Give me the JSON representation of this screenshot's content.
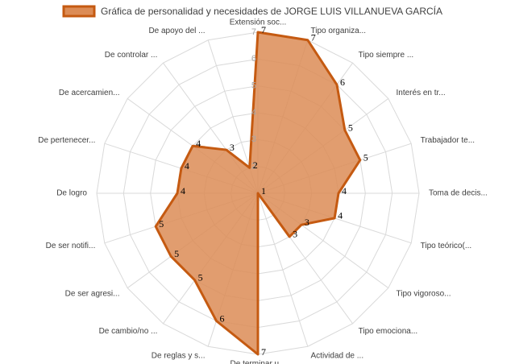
{
  "chart_data": {
    "type": "radar",
    "categories": [
      "Extensión soc...",
      "Tipo organiza...",
      "Tipo siempre ...",
      "Interés en tr...",
      "Trabajador te...",
      "Toma de decis...",
      "Tipo teórico(...",
      "Tipo vigoroso...",
      "Tipo emociona...",
      "Actividad de ...",
      "De terminar u...",
      "De reglas y s...",
      "De cambio/no ...",
      "De ser agresi...",
      "De ser notifi...",
      "De logro",
      "De pertenecer...",
      "De acercamien...",
      "De controlar ...",
      "De apoyo del ..."
    ],
    "series": [
      {
        "name": "Gráfica de personalidad y necesidades de JORGE LUIS VILLANUEVA GARCÍA",
        "color": "#c55a11",
        "fill": "#dc8c56",
        "values": [
          7,
          7,
          6,
          5,
          5,
          4,
          4,
          3,
          3,
          1,
          7,
          6,
          5,
          5,
          5,
          4,
          4,
          4,
          3,
          2
        ]
      }
    ],
    "rlim": [
      1,
      7
    ],
    "rticks": [
      1,
      2,
      3,
      4,
      5,
      6,
      7
    ],
    "grid": true,
    "legend": "top"
  }
}
